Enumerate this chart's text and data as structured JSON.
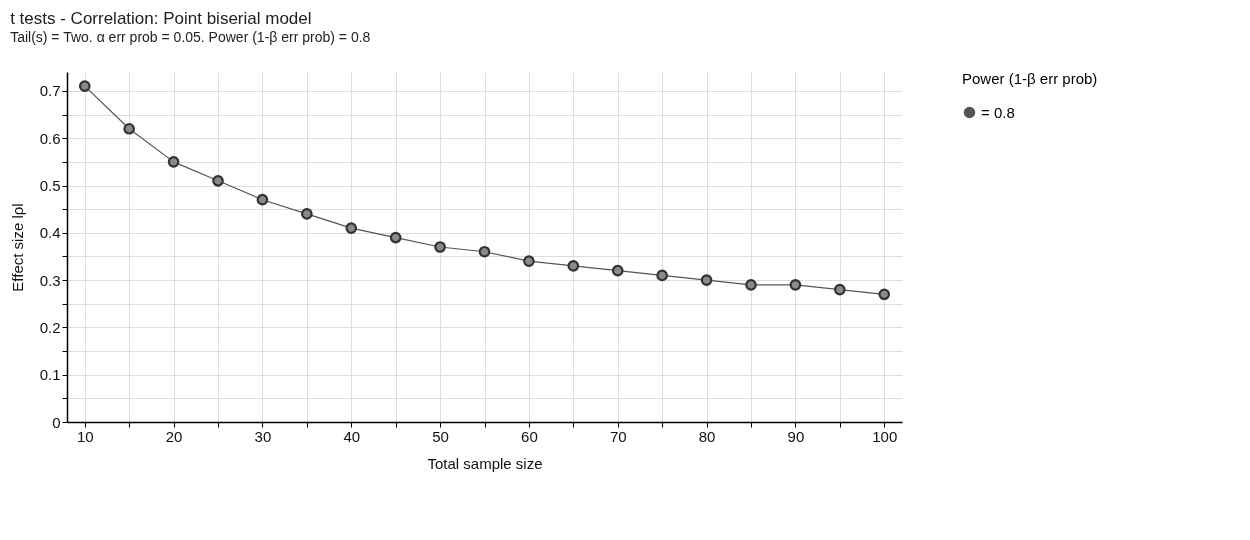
{
  "chart_data": {
    "type": "line",
    "title": "t tests - Correlation: Point biserial model",
    "subtitle": "Tail(s) = Two. α err prob = 0.05. Power (1-β err prob) = 0.8",
    "xlabel": "Total sample size",
    "ylabel": "Effect size lρl",
    "legend_title": "Power (1-β err prob)",
    "x": [
      10,
      15,
      20,
      25,
      30,
      35,
      40,
      45,
      50,
      55,
      60,
      65,
      70,
      75,
      80,
      85,
      90,
      95,
      100
    ],
    "series": [
      {
        "name": "= 0.8",
        "color": "#555555",
        "values": [
          0.71,
          0.62,
          0.55,
          0.51,
          0.47,
          0.44,
          0.41,
          0.39,
          0.37,
          0.36,
          0.34,
          0.33,
          0.32,
          0.31,
          0.3,
          0.29,
          0.29,
          0.28,
          0.27
        ]
      }
    ],
    "xlim": [
      8,
      102
    ],
    "xticks": [
      10,
      {
        "value": 15,
        "label": null
      },
      20,
      {
        "value": 25,
        "label": null
      },
      30,
      {
        "value": 35,
        "label": null
      },
      40,
      {
        "value": 45,
        "label": null
      },
      50,
      {
        "value": 55,
        "label": null
      },
      60,
      {
        "value": 65,
        "label": null
      },
      70,
      {
        "value": 75,
        "label": null
      },
      80,
      {
        "value": 85,
        "label": null
      },
      90,
      {
        "value": 95,
        "label": null
      },
      100
    ],
    "ylim": [
      0,
      0.74
    ],
    "yticks": [
      0,
      {
        "value": 0.05,
        "label": null
      },
      0.1,
      {
        "value": 0.15,
        "label": null
      },
      0.2,
      {
        "value": 0.25,
        "label": null
      },
      0.3,
      {
        "value": 0.35,
        "label": null
      },
      0.4,
      {
        "value": 0.45,
        "label": null
      },
      0.5,
      {
        "value": 0.55,
        "label": null
      },
      0.6,
      {
        "value": 0.65,
        "label": null
      },
      0.7
    ],
    "grid": true,
    "legend": "right",
    "marker": "circle",
    "line_style": "solid"
  }
}
